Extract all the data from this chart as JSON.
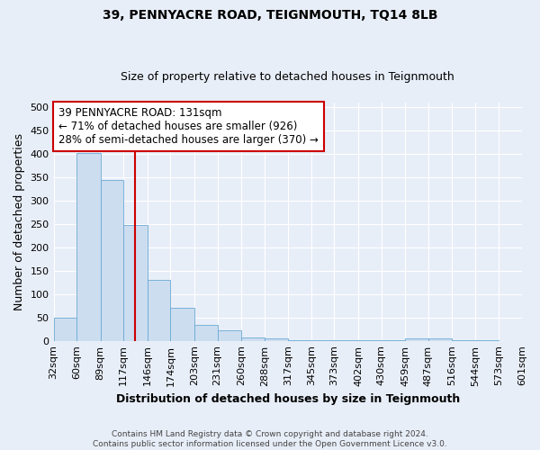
{
  "title": "39, PENNYACRE ROAD, TEIGNMOUTH, TQ14 8LB",
  "subtitle": "Size of property relative to detached houses in Teignmouth",
  "xlabel": "Distribution of detached houses by size in Teignmouth",
  "ylabel": "Number of detached properties",
  "footer_line1": "Contains HM Land Registry data © Crown copyright and database right 2024.",
  "footer_line2": "Contains public sector information licensed under the Open Government Licence v3.0.",
  "bins": [
    32,
    60,
    89,
    117,
    146,
    174,
    203,
    231,
    260,
    288,
    317,
    345,
    373,
    402,
    430,
    459,
    487,
    516,
    544,
    573,
    601
  ],
  "bin_labels": [
    "32sqm",
    "60sqm",
    "89sqm",
    "117sqm",
    "146sqm",
    "174sqm",
    "203sqm",
    "231sqm",
    "260sqm",
    "288sqm",
    "317sqm",
    "345sqm",
    "373sqm",
    "402sqm",
    "430sqm",
    "459sqm",
    "487sqm",
    "516sqm",
    "544sqm",
    "573sqm",
    "601sqm"
  ],
  "values": [
    50,
    403,
    345,
    247,
    130,
    70,
    35,
    22,
    8,
    5,
    2,
    1,
    1,
    1,
    1,
    5,
    5,
    1,
    1,
    0,
    4
  ],
  "bar_color": "#ccddf0",
  "bar_edge_color": "#6aaad4",
  "red_line_x": 131,
  "red_line_color": "#cc0000",
  "annotation_line1": "39 PENNYACRE ROAD: 131sqm",
  "annotation_line2": "← 71% of detached houses are smaller (926)",
  "annotation_line3": "28% of semi-detached houses are larger (370) →",
  "annotation_box_color": "#ffffff",
  "annotation_box_edge": "#cc0000",
  "ylim": [
    0,
    510
  ],
  "yticks": [
    0,
    50,
    100,
    150,
    200,
    250,
    300,
    350,
    400,
    450,
    500
  ],
  "bg_color": "#e8eef8",
  "plot_bg_color": "#e8eef8",
  "grid_color": "#ffffff",
  "title_fontsize": 10,
  "subtitle_fontsize": 9,
  "axis_label_fontsize": 9,
  "tick_fontsize": 8,
  "annotation_fontsize": 8.5,
  "footer_fontsize": 6.5
}
